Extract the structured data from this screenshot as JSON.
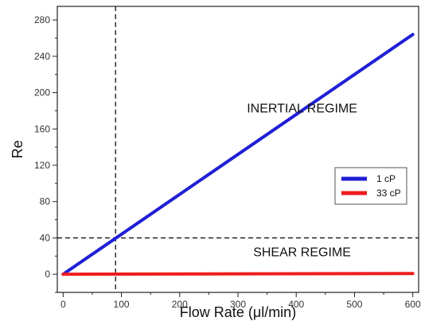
{
  "chart_data": {
    "type": "line",
    "xlabel": "Flow Rate (μl/min)",
    "ylabel": "Re",
    "xlim": [
      -10,
      610
    ],
    "ylim": [
      -20,
      295
    ],
    "x_ticks": [
      0,
      100,
      200,
      300,
      400,
      500,
      600
    ],
    "y_ticks": [
      0,
      40,
      80,
      120,
      160,
      200,
      240,
      280
    ],
    "x_tick_labels": [
      "0",
      "100",
      "200",
      "300",
      "400",
      "500",
      "600"
    ],
    "y_tick_labels": [
      "0",
      "40",
      "80",
      "120",
      "160",
      "200",
      "240",
      "280"
    ],
    "grid": false,
    "legend_position": "right",
    "series": [
      {
        "name": "1 cP",
        "color": "#1f1fd6",
        "x": [
          0,
          600
        ],
        "y": [
          0,
          264
        ]
      },
      {
        "name": "33 cP",
        "color": "#ee1c1c",
        "x": [
          0,
          600
        ],
        "y": [
          0,
          0.8
        ]
      }
    ],
    "reference_lines": [
      {
        "orientation": "vertical",
        "value": 90
      },
      {
        "orientation": "horizontal",
        "value": 40
      }
    ],
    "annotations": [
      {
        "text": "INERTIAL REGIME",
        "x": 410,
        "y": 178
      },
      {
        "text": "SHEAR REGIME",
        "x": 410,
        "y": 20
      }
    ]
  }
}
